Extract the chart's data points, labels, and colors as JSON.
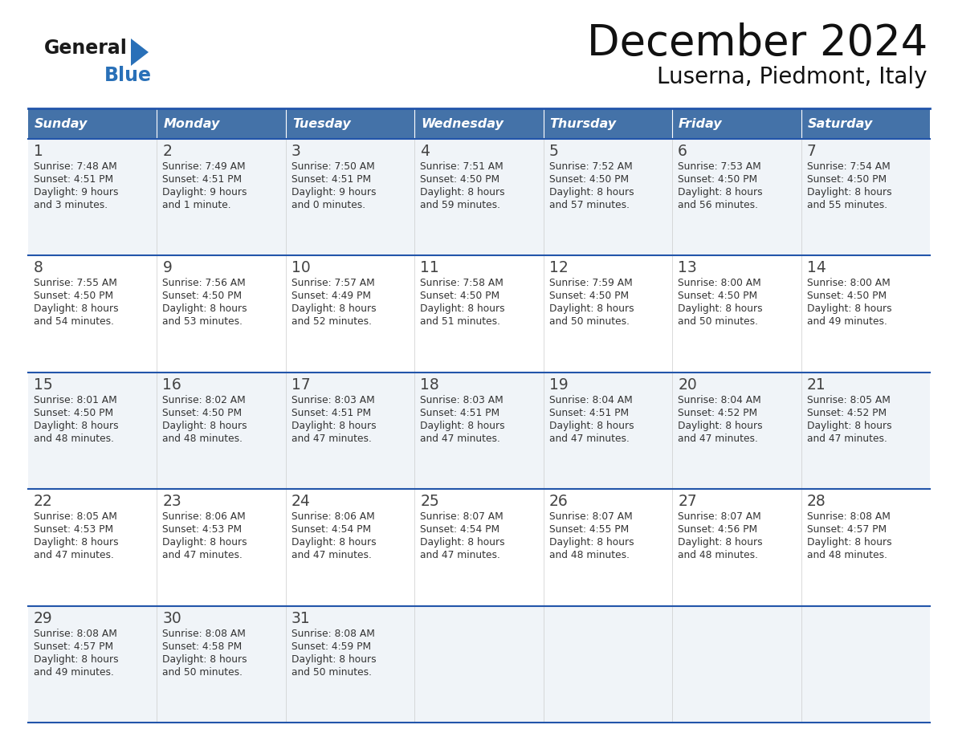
{
  "title": "December 2024",
  "subtitle": "Luserna, Piedmont, Italy",
  "header_bg": "#4472a8",
  "header_text": "#ffffff",
  "header_days": [
    "Sunday",
    "Monday",
    "Tuesday",
    "Wednesday",
    "Thursday",
    "Friday",
    "Saturday"
  ],
  "row_bg_light": "#f0f4f8",
  "row_bg_white": "#ffffff",
  "divider_color": "#2255aa",
  "cell_text_color": "#333333",
  "day_num_color": "#444444",
  "logo_general_color": "#1a1a1a",
  "logo_blue_color": "#2970b8",
  "weeks": [
    [
      {
        "day": 1,
        "sunrise": "7:48 AM",
        "sunset": "4:51 PM",
        "daylight1": "9 hours",
        "daylight2": "and 3 minutes."
      },
      {
        "day": 2,
        "sunrise": "7:49 AM",
        "sunset": "4:51 PM",
        "daylight1": "9 hours",
        "daylight2": "and 1 minute."
      },
      {
        "day": 3,
        "sunrise": "7:50 AM",
        "sunset": "4:51 PM",
        "daylight1": "9 hours",
        "daylight2": "and 0 minutes."
      },
      {
        "day": 4,
        "sunrise": "7:51 AM",
        "sunset": "4:50 PM",
        "daylight1": "8 hours",
        "daylight2": "and 59 minutes."
      },
      {
        "day": 5,
        "sunrise": "7:52 AM",
        "sunset": "4:50 PM",
        "daylight1": "8 hours",
        "daylight2": "and 57 minutes."
      },
      {
        "day": 6,
        "sunrise": "7:53 AM",
        "sunset": "4:50 PM",
        "daylight1": "8 hours",
        "daylight2": "and 56 minutes."
      },
      {
        "day": 7,
        "sunrise": "7:54 AM",
        "sunset": "4:50 PM",
        "daylight1": "8 hours",
        "daylight2": "and 55 minutes."
      }
    ],
    [
      {
        "day": 8,
        "sunrise": "7:55 AM",
        "sunset": "4:50 PM",
        "daylight1": "8 hours",
        "daylight2": "and 54 minutes."
      },
      {
        "day": 9,
        "sunrise": "7:56 AM",
        "sunset": "4:50 PM",
        "daylight1": "8 hours",
        "daylight2": "and 53 minutes."
      },
      {
        "day": 10,
        "sunrise": "7:57 AM",
        "sunset": "4:49 PM",
        "daylight1": "8 hours",
        "daylight2": "and 52 minutes."
      },
      {
        "day": 11,
        "sunrise": "7:58 AM",
        "sunset": "4:50 PM",
        "daylight1": "8 hours",
        "daylight2": "and 51 minutes."
      },
      {
        "day": 12,
        "sunrise": "7:59 AM",
        "sunset": "4:50 PM",
        "daylight1": "8 hours",
        "daylight2": "and 50 minutes."
      },
      {
        "day": 13,
        "sunrise": "8:00 AM",
        "sunset": "4:50 PM",
        "daylight1": "8 hours",
        "daylight2": "and 50 minutes."
      },
      {
        "day": 14,
        "sunrise": "8:00 AM",
        "sunset": "4:50 PM",
        "daylight1": "8 hours",
        "daylight2": "and 49 minutes."
      }
    ],
    [
      {
        "day": 15,
        "sunrise": "8:01 AM",
        "sunset": "4:50 PM",
        "daylight1": "8 hours",
        "daylight2": "and 48 minutes."
      },
      {
        "day": 16,
        "sunrise": "8:02 AM",
        "sunset": "4:50 PM",
        "daylight1": "8 hours",
        "daylight2": "and 48 minutes."
      },
      {
        "day": 17,
        "sunrise": "8:03 AM",
        "sunset": "4:51 PM",
        "daylight1": "8 hours",
        "daylight2": "and 47 minutes."
      },
      {
        "day": 18,
        "sunrise": "8:03 AM",
        "sunset": "4:51 PM",
        "daylight1": "8 hours",
        "daylight2": "and 47 minutes."
      },
      {
        "day": 19,
        "sunrise": "8:04 AM",
        "sunset": "4:51 PM",
        "daylight1": "8 hours",
        "daylight2": "and 47 minutes."
      },
      {
        "day": 20,
        "sunrise": "8:04 AM",
        "sunset": "4:52 PM",
        "daylight1": "8 hours",
        "daylight2": "and 47 minutes."
      },
      {
        "day": 21,
        "sunrise": "8:05 AM",
        "sunset": "4:52 PM",
        "daylight1": "8 hours",
        "daylight2": "and 47 minutes."
      }
    ],
    [
      {
        "day": 22,
        "sunrise": "8:05 AM",
        "sunset": "4:53 PM",
        "daylight1": "8 hours",
        "daylight2": "and 47 minutes."
      },
      {
        "day": 23,
        "sunrise": "8:06 AM",
        "sunset": "4:53 PM",
        "daylight1": "8 hours",
        "daylight2": "and 47 minutes."
      },
      {
        "day": 24,
        "sunrise": "8:06 AM",
        "sunset": "4:54 PM",
        "daylight1": "8 hours",
        "daylight2": "and 47 minutes."
      },
      {
        "day": 25,
        "sunrise": "8:07 AM",
        "sunset": "4:54 PM",
        "daylight1": "8 hours",
        "daylight2": "and 47 minutes."
      },
      {
        "day": 26,
        "sunrise": "8:07 AM",
        "sunset": "4:55 PM",
        "daylight1": "8 hours",
        "daylight2": "and 48 minutes."
      },
      {
        "day": 27,
        "sunrise": "8:07 AM",
        "sunset": "4:56 PM",
        "daylight1": "8 hours",
        "daylight2": "and 48 minutes."
      },
      {
        "day": 28,
        "sunrise": "8:08 AM",
        "sunset": "4:57 PM",
        "daylight1": "8 hours",
        "daylight2": "and 48 minutes."
      }
    ],
    [
      {
        "day": 29,
        "sunrise": "8:08 AM",
        "sunset": "4:57 PM",
        "daylight1": "8 hours",
        "daylight2": "and 49 minutes."
      },
      {
        "day": 30,
        "sunrise": "8:08 AM",
        "sunset": "4:58 PM",
        "daylight1": "8 hours",
        "daylight2": "and 50 minutes."
      },
      {
        "day": 31,
        "sunrise": "8:08 AM",
        "sunset": "4:59 PM",
        "daylight1": "8 hours",
        "daylight2": "and 50 minutes."
      },
      null,
      null,
      null,
      null
    ]
  ]
}
